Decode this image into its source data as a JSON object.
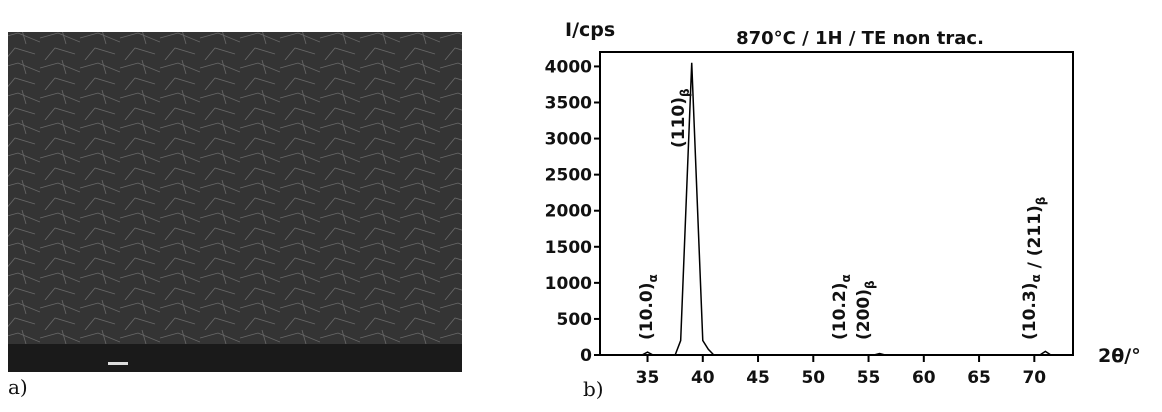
{
  "panel_a": {
    "label": "a)"
  },
  "chart_data": {
    "type": "line",
    "panel_label": "b)",
    "title": "870°C / 1H / TE non trac.",
    "y_label": "I/cps",
    "x_label": "2θ/°",
    "x": [
      31,
      34.5,
      35,
      35.5,
      37.5,
      38,
      39,
      40,
      40.5,
      41,
      55.5,
      56,
      56.5,
      70.5,
      71,
      71.5,
      73
    ],
    "series": [
      {
        "color": "#000000",
        "values": [
          0,
          0,
          40,
          0,
          0,
          200,
          4050,
          200,
          80,
          0,
          0,
          20,
          0,
          0,
          50,
          0,
          0
        ]
      }
    ],
    "xlim": [
      30.7,
      73.5
    ],
    "xticks": [
      35,
      40,
      45,
      50,
      55,
      60,
      65,
      70
    ],
    "ylim": [
      0,
      4200
    ],
    "yticks": [
      0,
      500,
      1000,
      1500,
      2000,
      2500,
      3000,
      3500,
      4000
    ],
    "annotations": [
      {
        "parts": [
          {
            "text": "(10.0)",
            "sub": "α"
          }
        ]
      },
      {
        "parts": [
          {
            "text": "(110)",
            "sub": "β"
          }
        ]
      },
      {
        "parts": [
          {
            "text": "(10.2)",
            "sub": "α"
          }
        ]
      },
      {
        "parts": [
          {
            "text": "(200)",
            "sub": "β"
          }
        ]
      },
      {
        "parts": [
          {
            "text": "(10.3)",
            "sub": "α"
          },
          {
            "text": " / (211)",
            "sub": "β"
          }
        ]
      }
    ]
  }
}
